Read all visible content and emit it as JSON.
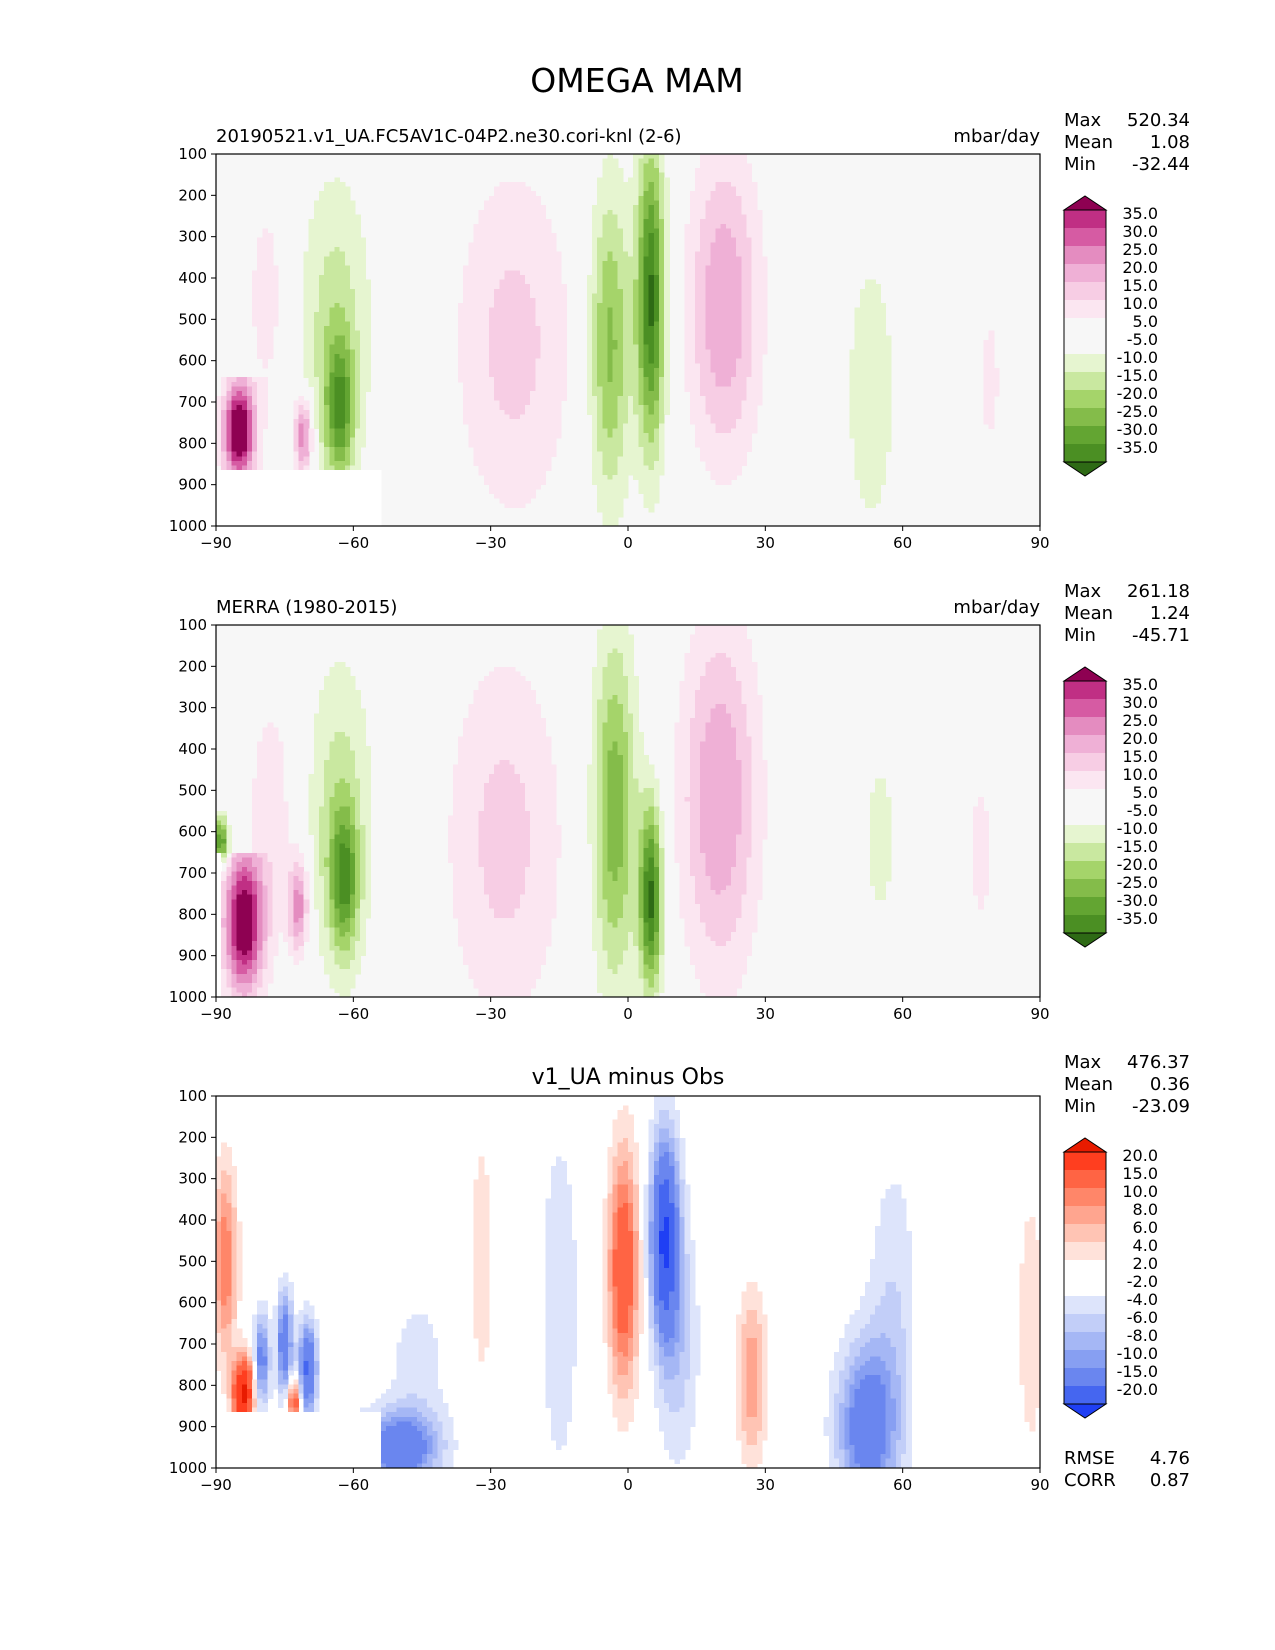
{
  "figure": {
    "title": "OMEGA MAM"
  },
  "colors": {
    "pos_model": [
      "#f7f7f7",
      "#fbe6f1",
      "#f7cde4",
      "#efb0d6",
      "#e48cc0",
      "#d65ba3",
      "#c02f84",
      "#8e0152"
    ],
    "neg_model": [
      "#f7f7f7",
      "#e6f5d0",
      "#c9e8a0",
      "#a5d46a",
      "#84bc4a",
      "#63a532",
      "#4b8f23",
      "#2e6a15"
    ],
    "pos_diff": [
      "#ffffff",
      "#ffe2da",
      "#ffc4b4",
      "#ffa58f",
      "#ff8669",
      "#ff6444",
      "#ff3e1f",
      "#e81b00"
    ],
    "neg_diff": [
      "#ffffff",
      "#dde4fb",
      "#c2cef8",
      "#a5b7f5",
      "#879ff2",
      "#6a86ef",
      "#4566f0",
      "#1f3ff4"
    ],
    "axis": "#000000",
    "background": "#f7f7f7"
  },
  "chart_data": [
    {
      "type": "contour",
      "panel": "test",
      "title_left": "20190521.v1_UA.FC5AV1C-04P2.ne30.cori-knl (2-6)",
      "title_right": "mbar/day",
      "stats": {
        "max_label": "Max",
        "max": "520.34",
        "mean_label": "Mean",
        "mean": "1.08",
        "min_label": "Min",
        "min": "-32.44"
      },
      "x_ticks": [
        "−90",
        "−60",
        "−30",
        "0",
        "30",
        "60",
        "90"
      ],
      "xlim": [
        -90,
        90
      ],
      "y_ticks": [
        "100",
        "200",
        "300",
        "400",
        "500",
        "600",
        "700",
        "800",
        "900",
        "1000"
      ],
      "ylim": [
        100,
        1000
      ],
      "levels": [
        "35.0",
        "30.0",
        "25.0",
        "20.0",
        "15.0",
        "10.0",
        "5.0",
        "-5.0",
        "-10.0",
        "-15.0",
        "-20.0",
        "-25.0",
        "-30.0",
        "-35.0"
      ],
      "palette": "model",
      "masked_region": {
        "lon": [
          -90,
          -54
        ],
        "p": [
          870,
          1000
        ]
      },
      "features": [
        {
          "lon": -85,
          "lonw": 2.4,
          "p": 770,
          "pw": 85,
          "v": 45,
          "ptop": 640,
          "pbot": 870
        },
        {
          "lon": -79,
          "lonw": 3.5,
          "p": 450,
          "pw": 220,
          "v": 7
        },
        {
          "lon": -71,
          "lonw": 1.4,
          "p": 780,
          "pw": 70,
          "v": 26,
          "ptop": 640,
          "pbot": 870
        },
        {
          "lon": -64,
          "lonw": 5.5,
          "p": 520,
          "pw": 260,
          "v": -13
        },
        {
          "lon": -63,
          "lonw": 2.2,
          "p": 720,
          "pw": 120,
          "v": -24
        },
        {
          "lon": -25,
          "lonw": 9.0,
          "p": 560,
          "pw": 300,
          "v": 12
        },
        {
          "lon": -4,
          "lonw": 3.2,
          "p": 560,
          "pw": 270,
          "v": -22
        },
        {
          "lon": 5,
          "lonw": 2.2,
          "p": 450,
          "pw": 260,
          "v": -36
        },
        {
          "lon": 21,
          "lonw": 5.5,
          "p": 470,
          "pw": 260,
          "v": 20
        },
        {
          "lon": 53,
          "lonw": 4.5,
          "p": 680,
          "pw": 290,
          "v": -8
        },
        {
          "lon": 79,
          "lonw": 2.5,
          "p": 650,
          "pw": 200,
          "v": 6
        }
      ]
    },
    {
      "type": "contour",
      "panel": "reference",
      "title_left": "MERRA (1980-2015)",
      "title_right": "mbar/day",
      "stats": {
        "max_label": "Max",
        "max": "261.18",
        "mean_label": "Mean",
        "mean": "1.24",
        "min_label": "Min",
        "min": "-45.71"
      },
      "x_ticks": [
        "−90",
        "−60",
        "−30",
        "0",
        "30",
        "60",
        "90"
      ],
      "xlim": [
        -90,
        90
      ],
      "y_ticks": [
        "100",
        "200",
        "300",
        "400",
        "500",
        "600",
        "700",
        "800",
        "900",
        "1000"
      ],
      "ylim": [
        100,
        1000
      ],
      "levels": [
        "35.0",
        "30.0",
        "25.0",
        "20.0",
        "15.0",
        "10.0",
        "5.0",
        "-5.0",
        "-10.0",
        "-15.0",
        "-20.0",
        "-25.0",
        "-30.0",
        "-35.0"
      ],
      "palette": "model",
      "masked_region": {
        "lon": [
          -90,
          -89
        ],
        "p": [
          650,
          1000
        ]
      },
      "features": [
        {
          "lon": -84,
          "lonw": 3.0,
          "p": 820,
          "pw": 120,
          "v": 42,
          "ptop": 650,
          "pbot": 1000
        },
        {
          "lon": -78,
          "lonw": 4.0,
          "p": 560,
          "pw": 240,
          "v": 8
        },
        {
          "lon": -72,
          "lonw": 1.5,
          "p": 780,
          "pw": 80,
          "v": 24
        },
        {
          "lon": -89,
          "lonw": 1.2,
          "p": 620,
          "pw": 40,
          "v": -30
        },
        {
          "lon": -63,
          "lonw": 5.0,
          "p": 560,
          "pw": 270,
          "v": -13
        },
        {
          "lon": -62,
          "lonw": 2.2,
          "p": 720,
          "pw": 120,
          "v": -24
        },
        {
          "lon": -27,
          "lonw": 9.0,
          "p": 620,
          "pw": 320,
          "v": 12
        },
        {
          "lon": -3,
          "lonw": 3.4,
          "p": 550,
          "pw": 300,
          "v": -24
        },
        {
          "lon": 5,
          "lonw": 1.8,
          "p": 760,
          "pw": 160,
          "v": -36
        },
        {
          "lon": 20,
          "lonw": 6.0,
          "p": 520,
          "pw": 300,
          "v": 20
        },
        {
          "lon": 55,
          "lonw": 4.0,
          "p": 620,
          "pw": 250,
          "v": -6
        },
        {
          "lon": 77,
          "lonw": 3.0,
          "p": 650,
          "pw": 220,
          "v": 6
        }
      ]
    },
    {
      "type": "contour",
      "panel": "difference",
      "title_center": "v1_UA minus Obs",
      "stats": {
        "max_label": "Max",
        "max": "476.37",
        "mean_label": "Mean",
        "mean": "0.36",
        "min_label": "Min",
        "min": "-23.09"
      },
      "metrics": {
        "rmse_label": "RMSE",
        "rmse": "4.76",
        "corr_label": "CORR",
        "corr": "0.87"
      },
      "x_ticks": [
        "−90",
        "−60",
        "−30",
        "0",
        "30",
        "60",
        "90"
      ],
      "xlim": [
        -90,
        90
      ],
      "y_ticks": [
        "100",
        "200",
        "300",
        "400",
        "500",
        "600",
        "700",
        "800",
        "900",
        "1000"
      ],
      "ylim": [
        100,
        1000
      ],
      "levels": [
        "20.0",
        "15.0",
        "10.0",
        "8.0",
        "6.0",
        "4.0",
        "2.0",
        "-2.0",
        "-4.0",
        "-6.0",
        "-8.0",
        "-10.0",
        "-15.0",
        "-20.0"
      ],
      "palette": "diff",
      "masked_region": {
        "lon": [
          -90,
          -54
        ],
        "p": [
          870,
          1000
        ]
      },
      "features": [
        {
          "lon": -88,
          "lonw": 1.8,
          "p": 500,
          "pw": 160,
          "v": 10
        },
        {
          "lon": -84,
          "lonw": 1.6,
          "p": 820,
          "pw": 60,
          "v": 22
        },
        {
          "lon": -80,
          "lonw": 1.2,
          "p": 740,
          "pw": 80,
          "v": -12
        },
        {
          "lon": -75,
          "lonw": 1.2,
          "p": 700,
          "pw": 90,
          "v": -14
        },
        {
          "lon": -70,
          "lonw": 1.4,
          "p": 760,
          "pw": 80,
          "v": -16
        },
        {
          "lon": -73,
          "lonw": 1.0,
          "p": 840,
          "pw": 40,
          "v": 14
        },
        {
          "lon": -50,
          "lonw": 6.0,
          "p": 950,
          "pw": 60,
          "v": -14
        },
        {
          "lon": -46,
          "lonw": 5.0,
          "p": 760,
          "pw": 150,
          "v": -3
        },
        {
          "lon": -32,
          "lonw": 2.2,
          "p": 500,
          "pw": 280,
          "v": 3
        },
        {
          "lon": -15,
          "lonw": 3.0,
          "p": 600,
          "pw": 300,
          "v": -4
        },
        {
          "lon": -1,
          "lonw": 2.3,
          "p": 520,
          "pw": 200,
          "v": 14
        },
        {
          "lon": 8,
          "lonw": 2.2,
          "p": 440,
          "pw": 170,
          "v": -20
        },
        {
          "lon": 11,
          "lonw": 3.2,
          "p": 700,
          "pw": 210,
          "v": -5
        },
        {
          "lon": 27,
          "lonw": 2.2,
          "p": 780,
          "pw": 140,
          "v": 8
        },
        {
          "lon": 52,
          "lonw": 4.5,
          "p": 900,
          "pw": 140,
          "v": -13
        },
        {
          "lon": 58,
          "lonw": 4.0,
          "p": 640,
          "pw": 280,
          "v": -4
        },
        {
          "lon": 65,
          "lonw": 1.5,
          "p": 600,
          "pw": 300,
          "v": 3
        },
        {
          "lon": 88,
          "lonw": 2.0,
          "p": 650,
          "pw": 220,
          "v": 4
        }
      ]
    }
  ]
}
